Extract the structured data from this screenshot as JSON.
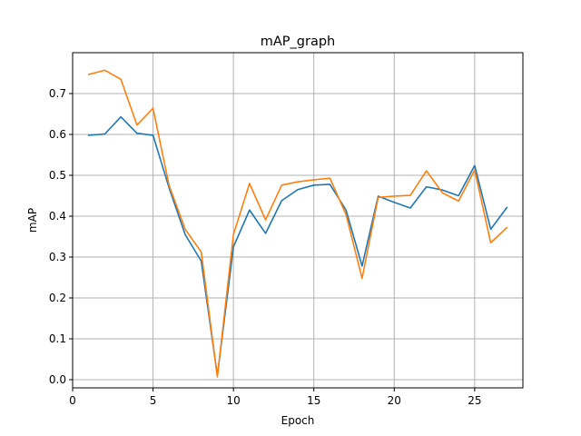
{
  "chart_data": {
    "type": "line",
    "title": "mAP_graph",
    "xlabel": "Epoch",
    "ylabel": "mAP",
    "xlim": [
      0,
      28
    ],
    "ylim": [
      -0.02,
      0.8
    ],
    "grid": true,
    "x_ticks": [
      0,
      5,
      10,
      15,
      20,
      25
    ],
    "y_ticks": [
      0.0,
      0.1,
      0.2,
      0.3,
      0.4,
      0.5,
      0.6,
      0.7
    ],
    "x": [
      1,
      2,
      3,
      4,
      5,
      6,
      7,
      8,
      9,
      10,
      11,
      12,
      13,
      14,
      15,
      16,
      17,
      18,
      19,
      20,
      21,
      22,
      23,
      24,
      25,
      26,
      27
    ],
    "series": [
      {
        "color": "#1f77b4",
        "values": [
          0.598,
          0.601,
          0.643,
          0.603,
          0.598,
          0.469,
          0.355,
          0.29,
          0.01,
          0.325,
          0.415,
          0.358,
          0.438,
          0.465,
          0.476,
          0.478,
          0.415,
          0.278,
          0.449,
          0.434,
          0.42,
          0.472,
          0.464,
          0.45,
          0.524,
          0.368,
          0.421
        ]
      },
      {
        "color": "#ff7f0e",
        "values": [
          0.747,
          0.757,
          0.735,
          0.623,
          0.664,
          0.475,
          0.368,
          0.312,
          0.007,
          0.355,
          0.48,
          0.391,
          0.476,
          0.484,
          0.489,
          0.493,
          0.404,
          0.248,
          0.446,
          0.449,
          0.451,
          0.511,
          0.457,
          0.437,
          0.513,
          0.335,
          0.372
        ]
      }
    ]
  }
}
